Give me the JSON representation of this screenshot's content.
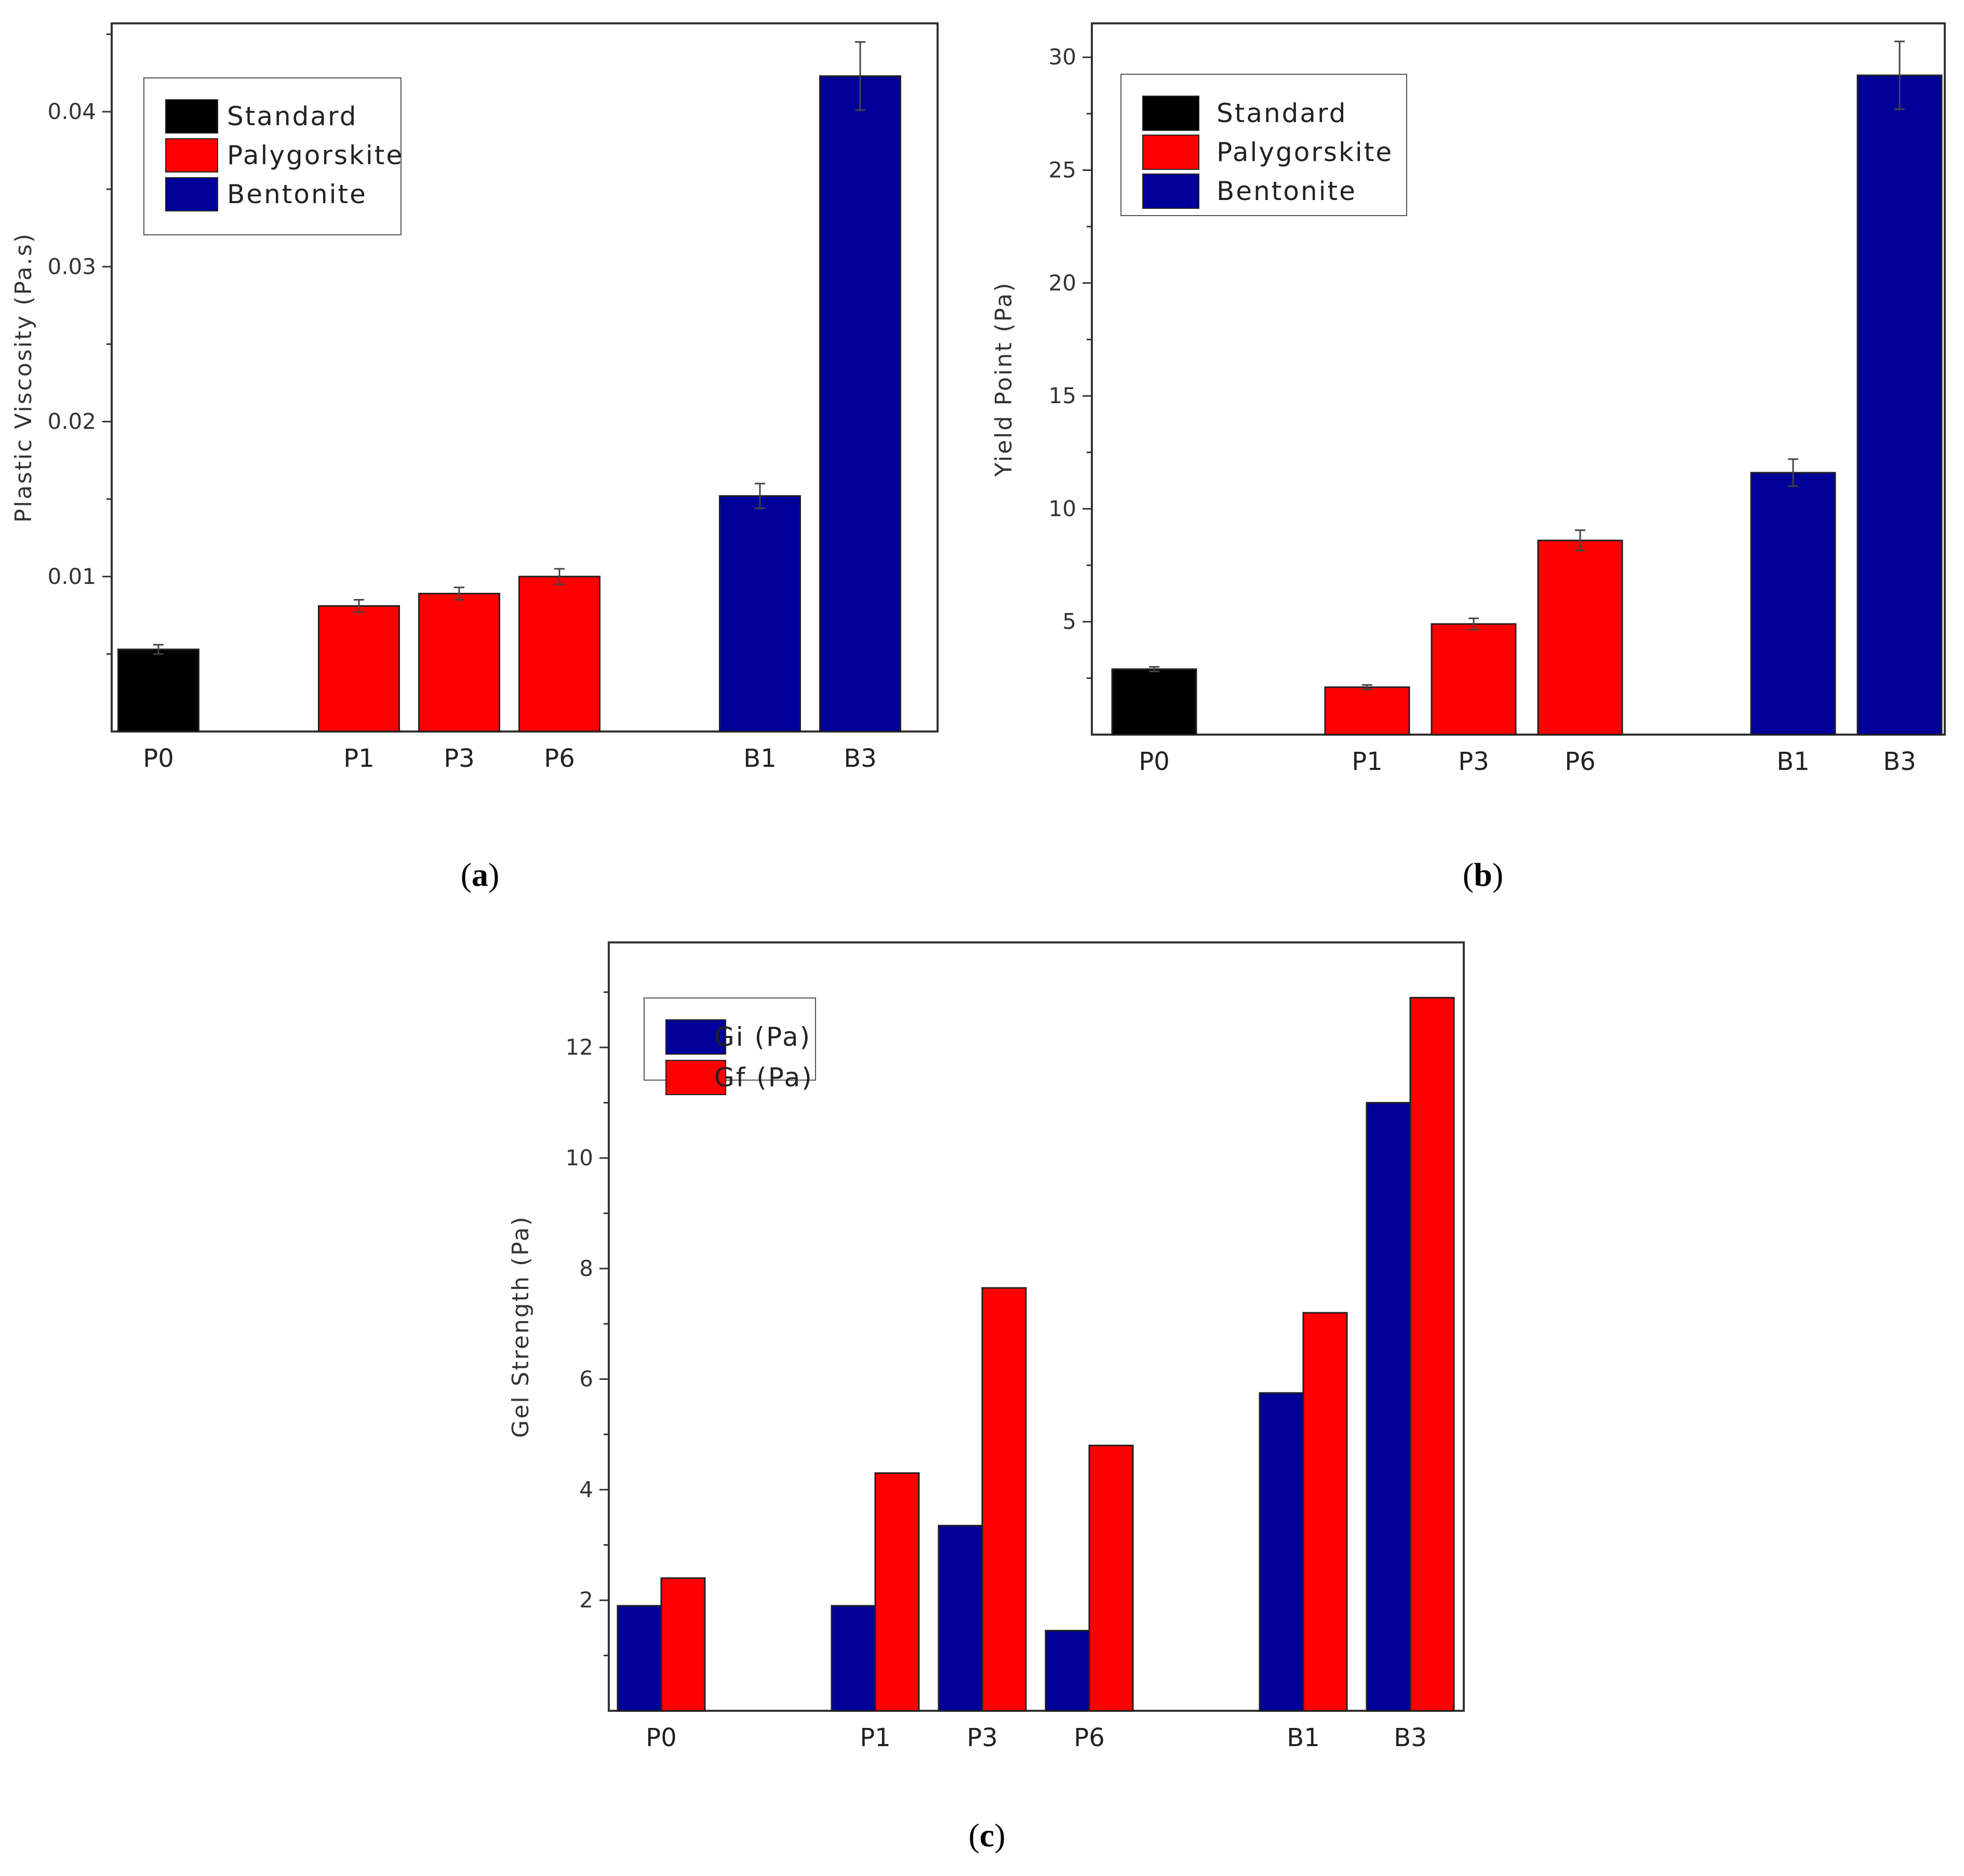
{
  "colors": {
    "Standard": "#000000",
    "Palygorskite": "#ff0000",
    "Bentonite": "#000099",
    "Gi": "#000099",
    "Gf": "#ff0000",
    "error_bar": "#444444"
  },
  "captions": [
    {
      "open": "(",
      "letter": "a",
      "close": ")"
    },
    {
      "open": "(",
      "letter": "b",
      "close": ")"
    },
    {
      "open": "(",
      "letter": "c",
      "close": ")"
    }
  ],
  "chart_data": [
    {
      "type": "bar",
      "panel": "a",
      "ylabel": "Plastic Viscosity (Pa.s)",
      "xlabel": "",
      "ylim": [
        0,
        0.0457
      ],
      "yticks": [
        0.01,
        0.02,
        0.03,
        0.04
      ],
      "ytick_labels": [
        "0.01",
        "0.02",
        "0.03",
        "0.04"
      ],
      "legend": [
        {
          "name": "Standard",
          "color": "#000000"
        },
        {
          "name": "Palygorskite",
          "color": "#ff0000"
        },
        {
          "name": "Bentonite",
          "color": "#000099"
        }
      ],
      "legend_position": "top-left",
      "slots": 8,
      "bars": [
        {
          "category": "P0",
          "slot": 0,
          "group": "Standard",
          "value": 0.0053,
          "error": 0.0003
        },
        {
          "category": "P1",
          "slot": 2,
          "group": "Palygorskite",
          "value": 0.0081,
          "error": 0.0004
        },
        {
          "category": "P3",
          "slot": 3,
          "group": "Palygorskite",
          "value": 0.0089,
          "error": 0.0004
        },
        {
          "category": "P6",
          "slot": 4,
          "group": "Palygorskite",
          "value": 0.01,
          "error": 0.0005
        },
        {
          "category": "B1",
          "slot": 6,
          "group": "Bentonite",
          "value": 0.0152,
          "error": 0.0008
        },
        {
          "category": "B3",
          "slot": 7,
          "group": "Bentonite",
          "value": 0.0423,
          "error": 0.0022
        }
      ]
    },
    {
      "type": "bar",
      "panel": "b",
      "ylabel": "Yield Point (Pa)",
      "xlabel": "",
      "ylim": [
        0,
        31.5
      ],
      "yticks": [
        5,
        10,
        15,
        20,
        25,
        30
      ],
      "ytick_labels": [
        "5",
        "10",
        "15",
        "20",
        "25",
        "30"
      ],
      "legend": [
        {
          "name": "Standard",
          "color": "#000000"
        },
        {
          "name": "Palygorskite",
          "color": "#ff0000"
        },
        {
          "name": "Bentonite",
          "color": "#000099"
        }
      ],
      "legend_position": "top-left",
      "slots": 8,
      "bars": [
        {
          "category": "P0",
          "slot": 0,
          "group": "Standard",
          "value": 2.9,
          "error": 0.1
        },
        {
          "category": "P1",
          "slot": 2,
          "group": "Palygorskite",
          "value": 2.1,
          "error": 0.1
        },
        {
          "category": "P3",
          "slot": 3,
          "group": "Palygorskite",
          "value": 4.9,
          "error": 0.25
        },
        {
          "category": "P6",
          "slot": 4,
          "group": "Palygorskite",
          "value": 8.6,
          "error": 0.45
        },
        {
          "category": "B1",
          "slot": 6,
          "group": "Bentonite",
          "value": 11.6,
          "error": 0.6
        },
        {
          "category": "B3",
          "slot": 7,
          "group": "Bentonite",
          "value": 29.2,
          "error": 1.5
        }
      ]
    },
    {
      "type": "bar",
      "panel": "c",
      "ylabel": "Gel Strength (Pa)",
      "xlabel": "",
      "ylim": [
        0,
        13.9
      ],
      "yticks": [
        2,
        4,
        6,
        8,
        10,
        12
      ],
      "ytick_labels": [
        "2",
        "4",
        "6",
        "8",
        "10",
        "12"
      ],
      "legend": [
        {
          "name": "Gi (Pa)",
          "color": "#000099"
        },
        {
          "name": "Gf (Pa)",
          "color": "#ff0000"
        }
      ],
      "legend_position": "top-left",
      "slots": 8,
      "categories": [
        "P0",
        "P1",
        "P3",
        "P6",
        "B1",
        "B3"
      ],
      "category_slots": [
        0,
        2,
        3,
        4,
        6,
        7
      ],
      "series": [
        {
          "name": "Gi (Pa)",
          "color": "#000099",
          "values": [
            1.9,
            1.9,
            3.35,
            1.45,
            5.75,
            11.0
          ]
        },
        {
          "name": "Gf (Pa)",
          "color": "#ff0000",
          "values": [
            2.4,
            4.3,
            7.65,
            4.8,
            7.2,
            12.9
          ]
        }
      ]
    }
  ]
}
